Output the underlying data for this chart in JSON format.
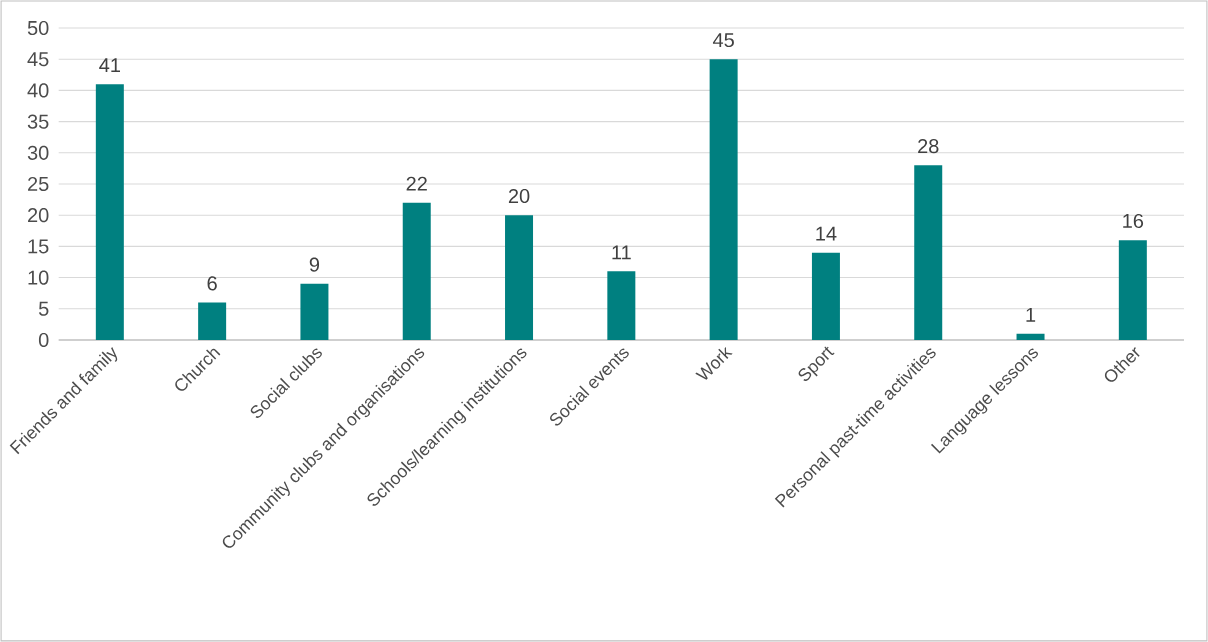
{
  "chart_data": {
    "type": "bar",
    "categories": [
      "Friends and family",
      "Church",
      "Social clubs",
      "Community clubs and organisations",
      "Schools/learning institutions",
      "Social events",
      "Work",
      "Sport",
      "Personal past-time activities",
      "Language lessons",
      "Other"
    ],
    "values": [
      41,
      6,
      9,
      22,
      20,
      11,
      45,
      14,
      28,
      1,
      16
    ],
    "color": "#008080",
    "ylim": [
      0,
      50
    ],
    "yticks": [
      0,
      5,
      10,
      15,
      20,
      25,
      30,
      35,
      40,
      45,
      50
    ],
    "grid": "y",
    "data_labels": true
  }
}
